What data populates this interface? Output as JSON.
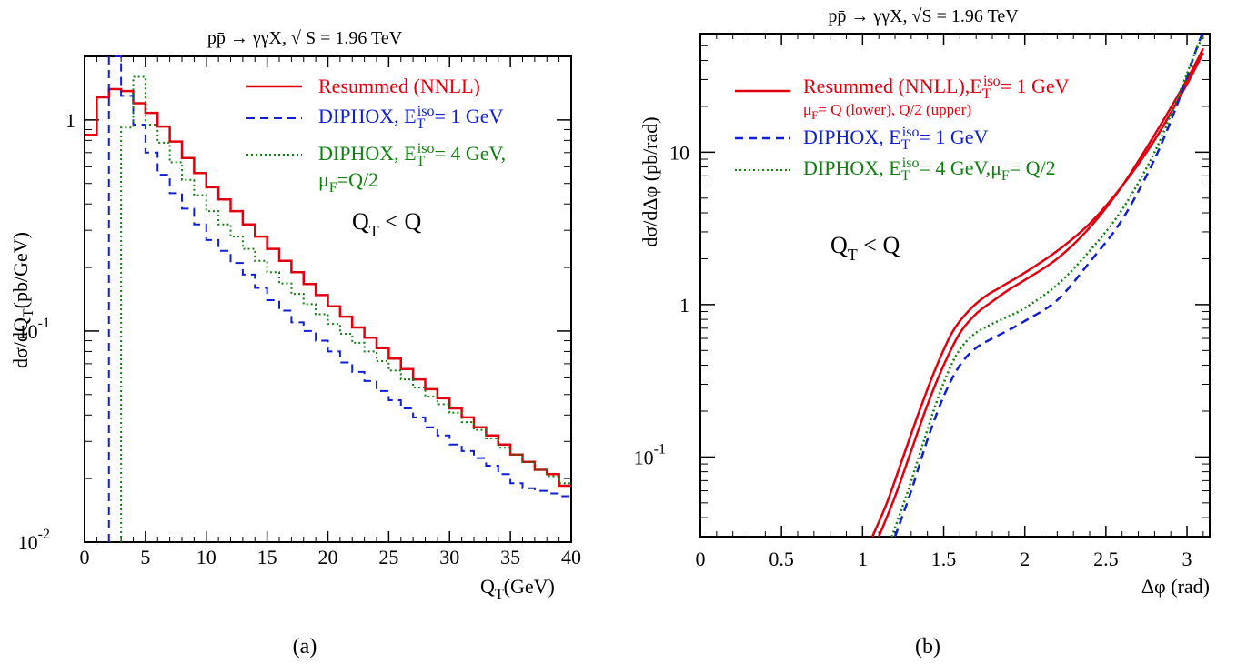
{
  "panels": [
    {
      "label": "(a)"
    },
    {
      "label": "(b)"
    }
  ],
  "chart_data": [
    {
      "type": "line",
      "drawstyle": "steps",
      "title": "pp̄ → γγX, √ S = 1.96 TeV",
      "xlabel": "Q",
      "xlabel_sub": "T",
      "xlabel_suffix": "(GeV)",
      "ylabel": "dσ/dQ",
      "ylabel_sub": "T",
      "ylabel_suffix": "(pb/GeV)",
      "xlim": [
        0,
        40
      ],
      "ylim": [
        0.01,
        2.0
      ],
      "yscale": "log",
      "grid": false,
      "legend_position": "top-right",
      "annotation": {
        "main": "Q",
        "sub": "T",
        "rest": " < Q"
      },
      "x_ticks": [
        "0",
        "5",
        "10",
        "15",
        "20",
        "25",
        "30",
        "35",
        "40"
      ],
      "y_ticks": [
        {
          "base": "1",
          "exp": ""
        },
        {
          "base": "10",
          "exp": "-1"
        },
        {
          "base": "10",
          "exp": "-2"
        }
      ],
      "legend": [
        {
          "line1": "Resummed (NNLL)",
          "line2": ""
        },
        {
          "line1": "DIPHOX, E",
          "sub": "T",
          "sup": "iso",
          "rest": "= 1 GeV",
          "line2": ""
        },
        {
          "line1": "DIPHOX, E",
          "sub": "T",
          "sup": "iso",
          "rest": "= 4 GeV,",
          "line2": "μ",
          "line2_sub": "F",
          "line2_rest": "=Q/2"
        }
      ],
      "series": [
        {
          "color": "#e00010",
          "style": "solid",
          "edges": [
            0,
            1,
            2,
            3,
            4,
            5,
            6,
            7,
            8,
            9,
            10,
            11,
            12,
            13,
            14,
            15,
            16,
            17,
            18,
            19,
            20,
            21,
            22,
            23,
            24,
            25,
            26,
            27,
            28,
            29,
            30,
            31,
            32,
            33,
            34,
            35,
            36,
            37,
            38,
            39,
            40
          ],
          "values": [
            0.85,
            1.28,
            1.4,
            1.37,
            1.2,
            1.08,
            0.93,
            0.79,
            0.66,
            0.56,
            0.48,
            0.42,
            0.37,
            0.32,
            0.28,
            0.245,
            0.215,
            0.19,
            0.167,
            0.148,
            0.131,
            0.117,
            0.104,
            0.093,
            0.083,
            0.074,
            0.066,
            0.059,
            0.053,
            0.048,
            0.043,
            0.039,
            0.035,
            0.032,
            0.029,
            0.026,
            0.024,
            0.022,
            0.021,
            0.0185
          ]
        },
        {
          "color": "#1020d0",
          "style": "dashed",
          "edges": [
            2,
            3,
            4,
            5,
            6,
            7,
            8,
            9,
            10,
            11,
            12,
            13,
            14,
            15,
            16,
            17,
            18,
            19,
            20,
            21,
            22,
            23,
            24,
            25,
            26,
            27,
            28,
            29,
            30,
            31,
            32,
            33,
            34,
            35,
            36,
            37,
            38,
            39,
            40
          ],
          "values": [
            3.0,
            1.3,
            0.95,
            0.7,
            0.55,
            0.45,
            0.38,
            0.32,
            0.27,
            0.24,
            0.21,
            0.185,
            0.16,
            0.14,
            0.125,
            0.11,
            0.1,
            0.09,
            0.08,
            0.071,
            0.064,
            0.058,
            0.052,
            0.047,
            0.043,
            0.039,
            0.035,
            0.032,
            0.029,
            0.027,
            0.025,
            0.023,
            0.021,
            0.019,
            0.018,
            0.0175,
            0.017,
            0.0165
          ]
        },
        {
          "color": "#108010",
          "style": "dotted",
          "edges": [
            3,
            4,
            5,
            6,
            7,
            8,
            9,
            10,
            11,
            12,
            13,
            14,
            15,
            16,
            17,
            18,
            19,
            20,
            21,
            22,
            23,
            24,
            25,
            26,
            27,
            28,
            29,
            30,
            31,
            32,
            33,
            34,
            35,
            36,
            37,
            38,
            39,
            40
          ],
          "values": [
            0.92,
            1.6,
            0.95,
            0.78,
            0.63,
            0.52,
            0.44,
            0.37,
            0.32,
            0.28,
            0.245,
            0.215,
            0.19,
            0.168,
            0.15,
            0.134,
            0.12,
            0.108,
            0.097,
            0.088,
            0.08,
            0.072,
            0.065,
            0.059,
            0.054,
            0.049,
            0.045,
            0.041,
            0.037,
            0.034,
            0.031,
            0.028,
            0.026,
            0.024,
            0.022,
            0.0205,
            0.019
          ]
        }
      ]
    },
    {
      "type": "line",
      "title": "pp̄ → γγX,  √S = 1.96 TeV",
      "xlabel": "Δφ (rad)",
      "ylabel": "dσ/dΔφ (pb/rad)",
      "xlim": [
        0,
        3.14
      ],
      "ylim": [
        0.03,
        60
      ],
      "yscale": "log",
      "grid": false,
      "legend_position": "top-left",
      "annotation": {
        "main": "Q",
        "sub": "T",
        "rest": " < Q"
      },
      "x_ticks": [
        "0",
        "0.5",
        "1",
        "1.5",
        "2",
        "2.5",
        "3"
      ],
      "y_ticks": [
        {
          "base": "10",
          "exp": ""
        },
        {
          "base": "1",
          "exp": ""
        },
        {
          "base": "10",
          "exp": "-1"
        }
      ],
      "legend": [
        {
          "line1": "Resummed (NNLL),E",
          "sub": "T",
          "sup": "iso",
          "rest": "= 1 GeV",
          "line2": "μ",
          "line2_sub": "F",
          "line2_rest": "= Q (lower), Q/2 (upper)"
        },
        {
          "line1": "DIPHOX, E",
          "sub": "T",
          "sup": "iso",
          "rest": "= 1 GeV",
          "line2": ""
        },
        {
          "line1": "DIPHOX, E",
          "sub": "T",
          "sup": "iso",
          "rest": "= 4 GeV,μ",
          "rest_sub": "F",
          "rest2": "= Q/2",
          "line2": ""
        }
      ],
      "series": [
        {
          "color": "#e00010",
          "style": "solid",
          "x": [
            1.06,
            1.15,
            1.25,
            1.35,
            1.45,
            1.55,
            1.65,
            1.75,
            1.85,
            2.0,
            2.2,
            2.4,
            2.6,
            2.8,
            3.0,
            3.1
          ],
          "y": [
            0.03,
            0.05,
            0.1,
            0.2,
            0.38,
            0.65,
            0.9,
            1.12,
            1.3,
            1.62,
            2.25,
            3.4,
            6.0,
            12,
            28,
            45
          ]
        },
        {
          "color": "#e00010",
          "style": "solid",
          "x": [
            1.1,
            1.2,
            1.3,
            1.4,
            1.5,
            1.6,
            1.7,
            1.8,
            1.9,
            2.0,
            2.2,
            2.4,
            2.6,
            2.8,
            3.0,
            3.1
          ],
          "y": [
            0.03,
            0.055,
            0.11,
            0.22,
            0.4,
            0.65,
            0.87,
            1.05,
            1.25,
            1.45,
            2.0,
            3.2,
            6.0,
            13,
            30,
            48
          ]
        },
        {
          "color": "#1020d0",
          "style": "dashed",
          "x": [
            1.2,
            1.3,
            1.4,
            1.5,
            1.6,
            1.7,
            1.8,
            1.9,
            2.0,
            2.2,
            2.4,
            2.6,
            2.8,
            2.95,
            3.05,
            3.1
          ],
          "y": [
            0.03,
            0.06,
            0.13,
            0.25,
            0.4,
            0.52,
            0.6,
            0.68,
            0.78,
            1.07,
            1.9,
            3.6,
            9,
            22,
            45,
            62
          ]
        },
        {
          "color": "#108010",
          "style": "dotted",
          "x": [
            1.18,
            1.28,
            1.38,
            1.48,
            1.58,
            1.68,
            1.78,
            1.88,
            2.0,
            2.2,
            2.4,
            2.6,
            2.8,
            2.95,
            3.05,
            3.1
          ],
          "y": [
            0.03,
            0.06,
            0.13,
            0.27,
            0.47,
            0.63,
            0.73,
            0.82,
            0.95,
            1.35,
            2.25,
            4.2,
            10,
            24,
            45,
            58
          ]
        }
      ]
    }
  ]
}
